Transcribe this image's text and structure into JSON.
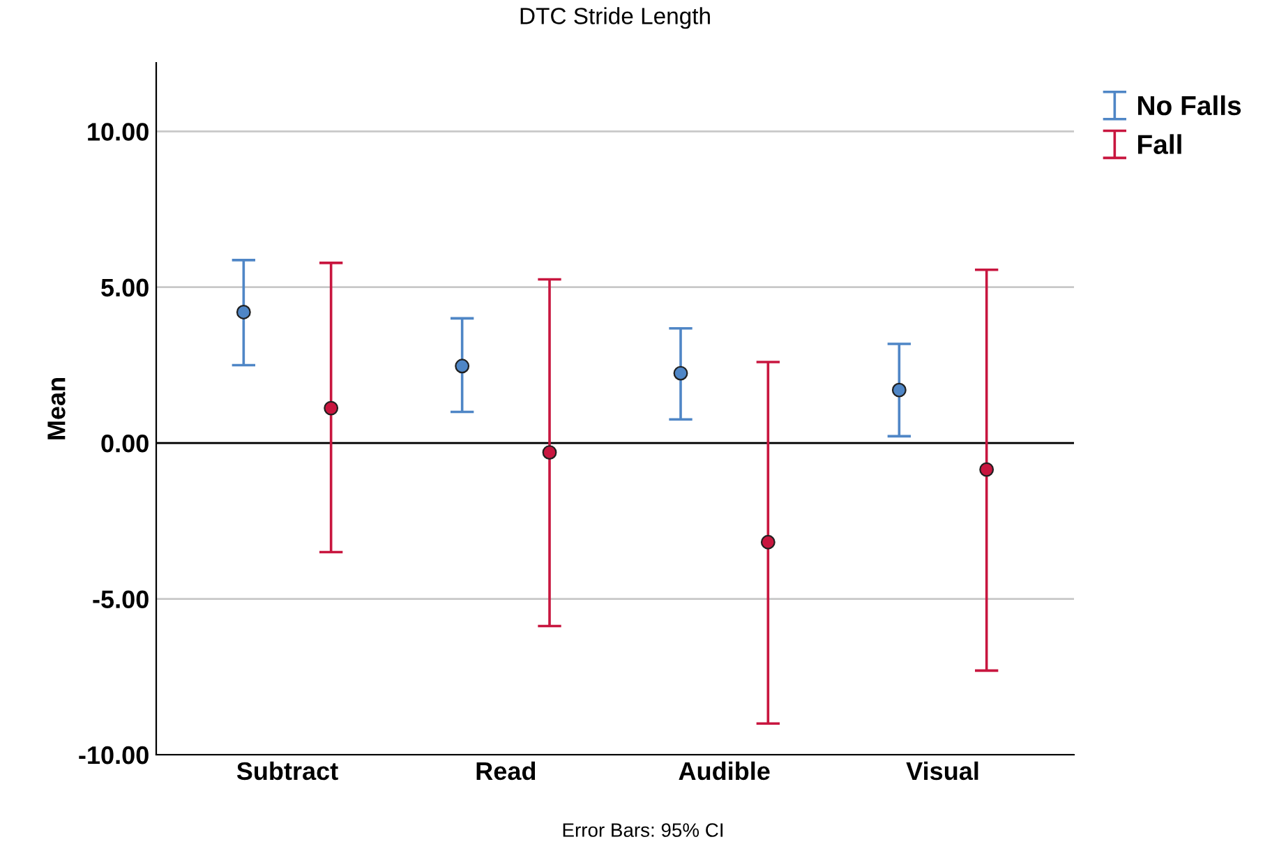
{
  "chart_data": {
    "type": "scatter",
    "title": "DTC Stride Length",
    "ylabel": "Mean",
    "categories": [
      "Subtract",
      "Read",
      "Audible",
      "Visual"
    ],
    "series": [
      {
        "name": "No Falls",
        "color": "#4f86c6",
        "values": [
          4.2,
          2.47,
          2.24,
          1.7
        ],
        "errors": [
          [
            2.5,
            5.87
          ],
          [
            1.0,
            4.0
          ],
          [
            0.76,
            3.68
          ],
          [
            0.22,
            3.18
          ]
        ]
      },
      {
        "name": "Fall",
        "color": "#c8163f",
        "values": [
          1.12,
          -0.3,
          -3.18,
          -0.85
        ],
        "errors": [
          [
            -3.5,
            5.78
          ],
          [
            -5.87,
            5.25
          ],
          [
            -9.0,
            2.6
          ],
          [
            -7.3,
            5.56
          ]
        ]
      }
    ],
    "ylim": [
      -10,
      12.2
    ],
    "yticks": [
      {
        "value": -10,
        "label": "-10.00"
      },
      {
        "value": -5,
        "label": "-5.00"
      },
      {
        "value": 0,
        "label": "0.00"
      },
      {
        "value": 5,
        "label": "5.00"
      },
      {
        "value": 10,
        "label": "10.00"
      }
    ],
    "ref_lines": [
      {
        "axis": "y",
        "value": 0,
        "color": "#000000"
      }
    ],
    "grid": "y",
    "legend": "top right",
    "marker": "circle",
    "annotations": [
      "Error Bars: 95% CI"
    ]
  }
}
